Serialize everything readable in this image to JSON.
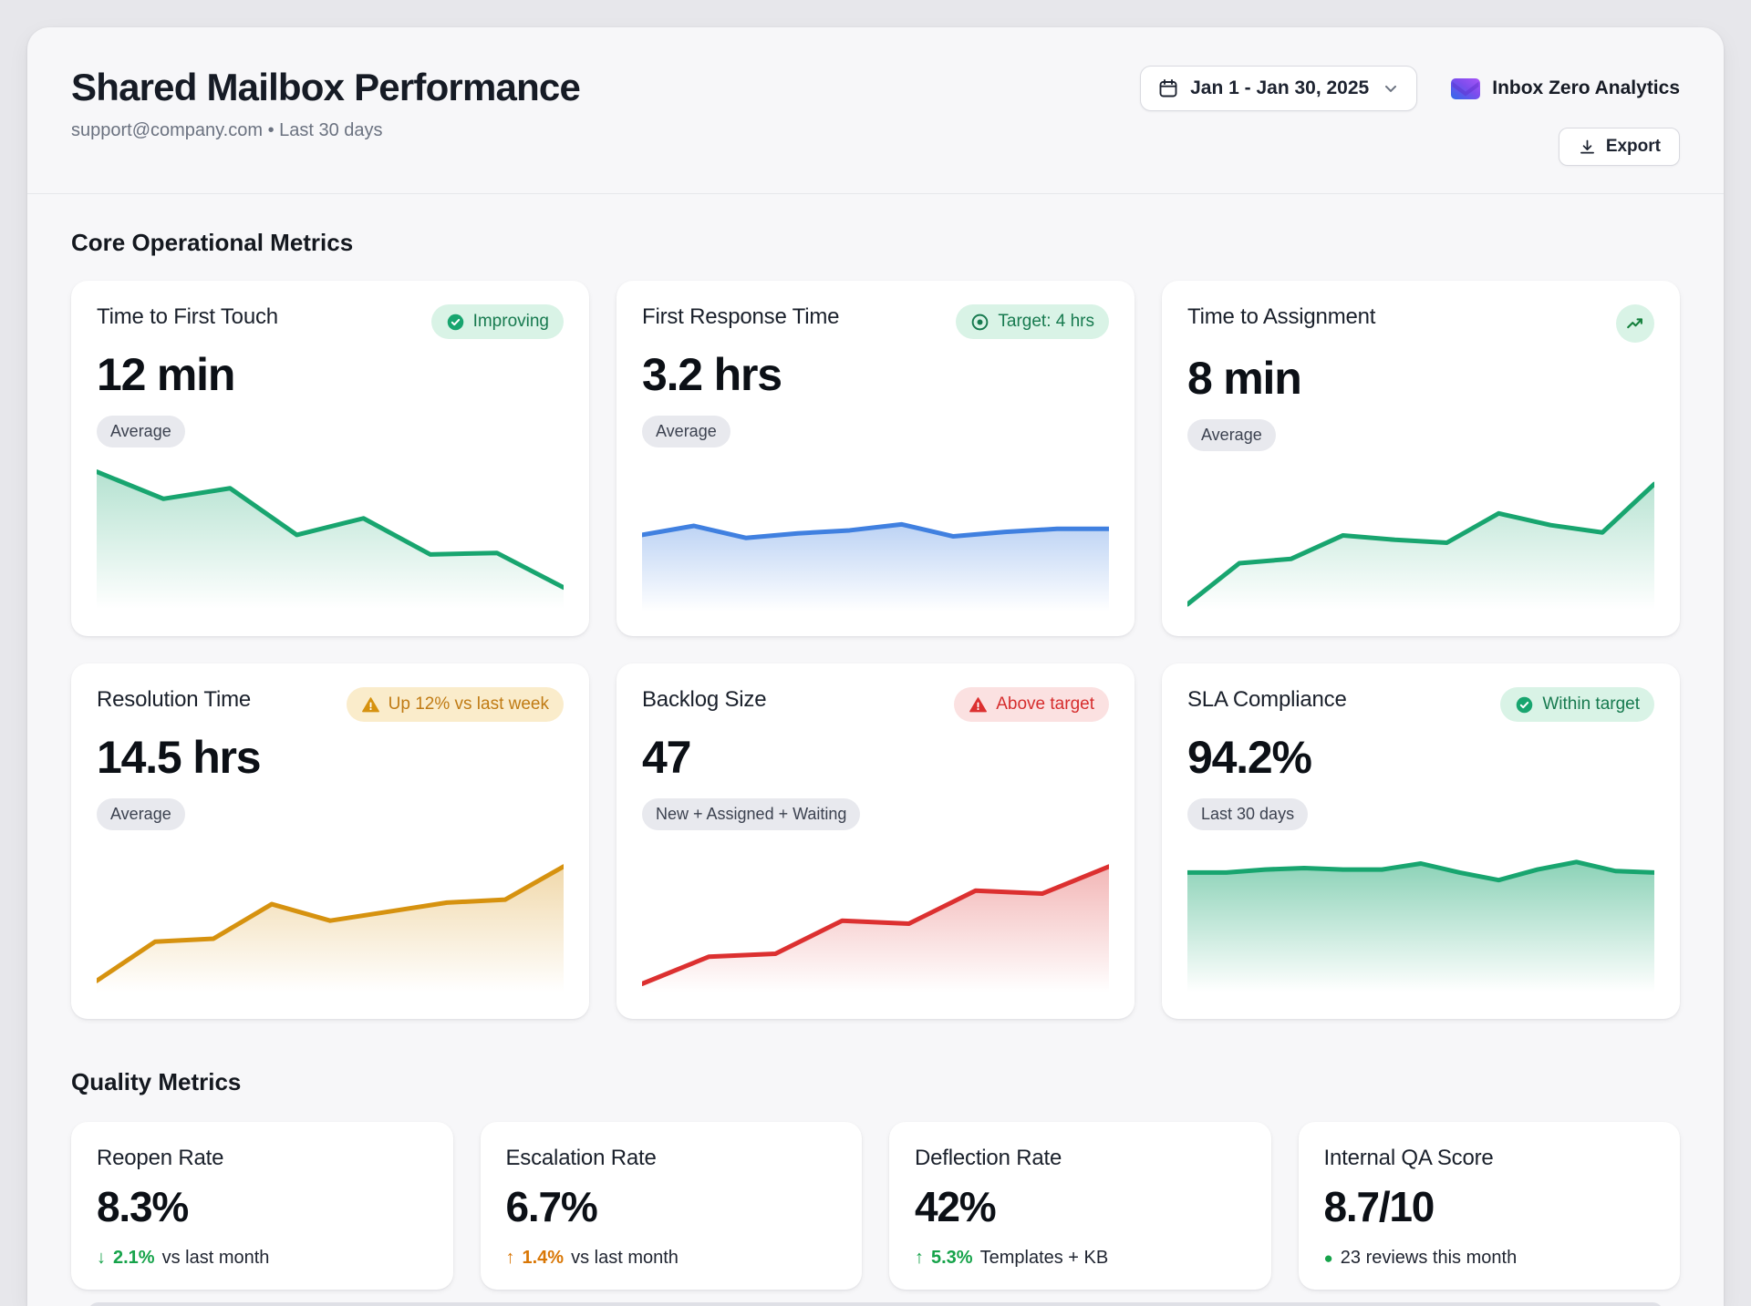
{
  "header": {
    "title": "Shared Mailbox Performance",
    "subtitle": "support@company.com • Last 30 days",
    "date_range": "Jan 1 - Jan 30, 2025",
    "brand": "Inbox Zero Analytics",
    "export_label": "Export"
  },
  "sections": {
    "core": "Core Operational Metrics",
    "quality": "Quality Metrics"
  },
  "colors": {
    "green": "#18a56f",
    "green_text": "#16a34a",
    "blue": "#4080e0",
    "amber": "#d6920f",
    "amber_text": "#d97706",
    "red": "#dc3030",
    "badge_success_bg": "#d9f3e6",
    "badge_amber_bg": "#faeccb",
    "badge_danger_bg": "#fbe1e1"
  },
  "icons": {
    "calendar-icon": "calendar outline",
    "chevron-down-icon": "⌄",
    "download-icon": "⤓",
    "check-circle-icon": "✔ in green circle",
    "target-icon": "◎",
    "warning-icon": "⚠",
    "trending-up-icon": "↗",
    "arrow-down-icon": "↓",
    "arrow-up-icon": "↑",
    "dot-icon": "●",
    "inbox-logo-icon": "blue-purple gradient envelope"
  },
  "core_cards": [
    {
      "title": "Time to First Touch",
      "value": "12 min",
      "tag": "Average",
      "badge": "Improving",
      "chart": {
        "type": "line",
        "color": "#18a56f",
        "fill_opacity": 0.32,
        "values": [
          96,
          78,
          85,
          54,
          65,
          41,
          42,
          19
        ]
      }
    },
    {
      "title": "First Response Time",
      "value": "3.2 hrs",
      "tag": "Average",
      "badge": "Target: 4 hrs",
      "chart": {
        "type": "line",
        "color": "#4080e0",
        "fill_opacity": 0.35,
        "values": [
          54,
          60,
          52,
          55,
          57,
          61,
          53,
          56,
          58,
          58
        ]
      }
    },
    {
      "title": "Time to Assignment",
      "value": "8 min",
      "tag": "Average",
      "badge": "",
      "chart": {
        "type": "line",
        "color": "#18a56f",
        "fill_opacity": 0.3,
        "values": [
          8,
          36,
          39,
          55,
          52,
          50,
          70,
          62,
          57,
          90
        ]
      }
    },
    {
      "title": "Resolution Time",
      "value": "14.5 hrs",
      "tag": "Average",
      "badge": "Up 12% vs last week",
      "chart": {
        "type": "line",
        "color": "#d6920f",
        "fill_opacity": 0.35,
        "values": [
          12,
          38,
          40,
          63,
          52,
          58,
          64,
          66,
          88
        ]
      }
    },
    {
      "title": "Backlog Size",
      "value": "47",
      "tag": "New + Assigned + Waiting",
      "badge": "Above target",
      "chart": {
        "type": "line",
        "color": "#dc3030",
        "fill_opacity": 0.35,
        "values": [
          10,
          28,
          30,
          52,
          50,
          72,
          70,
          88
        ]
      }
    },
    {
      "title": "SLA Compliance",
      "value": "94.2%",
      "tag": "Last 30 days",
      "badge": "Within target",
      "chart": {
        "type": "line",
        "color": "#18a56f",
        "fill_opacity": 0.5,
        "values": [
          84,
          84,
          86,
          87,
          86,
          86,
          90,
          84,
          79,
          86,
          91,
          85,
          84
        ]
      }
    }
  ],
  "quality_cards": [
    {
      "title": "Reopen Rate",
      "value": "8.3%",
      "delta_icon": "↓",
      "delta_value": "2.1%",
      "delta_text": "vs last month",
      "delta_color": "#16a34a"
    },
    {
      "title": "Escalation Rate",
      "value": "6.7%",
      "delta_icon": "↑",
      "delta_value": "1.4%",
      "delta_text": "vs last month",
      "delta_color": "#d97706"
    },
    {
      "title": "Deflection Rate",
      "value": "42%",
      "delta_icon": "↑",
      "delta_value": "5.3%",
      "delta_text": "Templates + KB",
      "delta_color": "#16a34a"
    },
    {
      "title": "Internal QA Score",
      "value": "8.7/10",
      "delta_icon": "●",
      "delta_value": "",
      "delta_text": "23 reviews this month",
      "delta_color": "#16a34a"
    }
  ]
}
